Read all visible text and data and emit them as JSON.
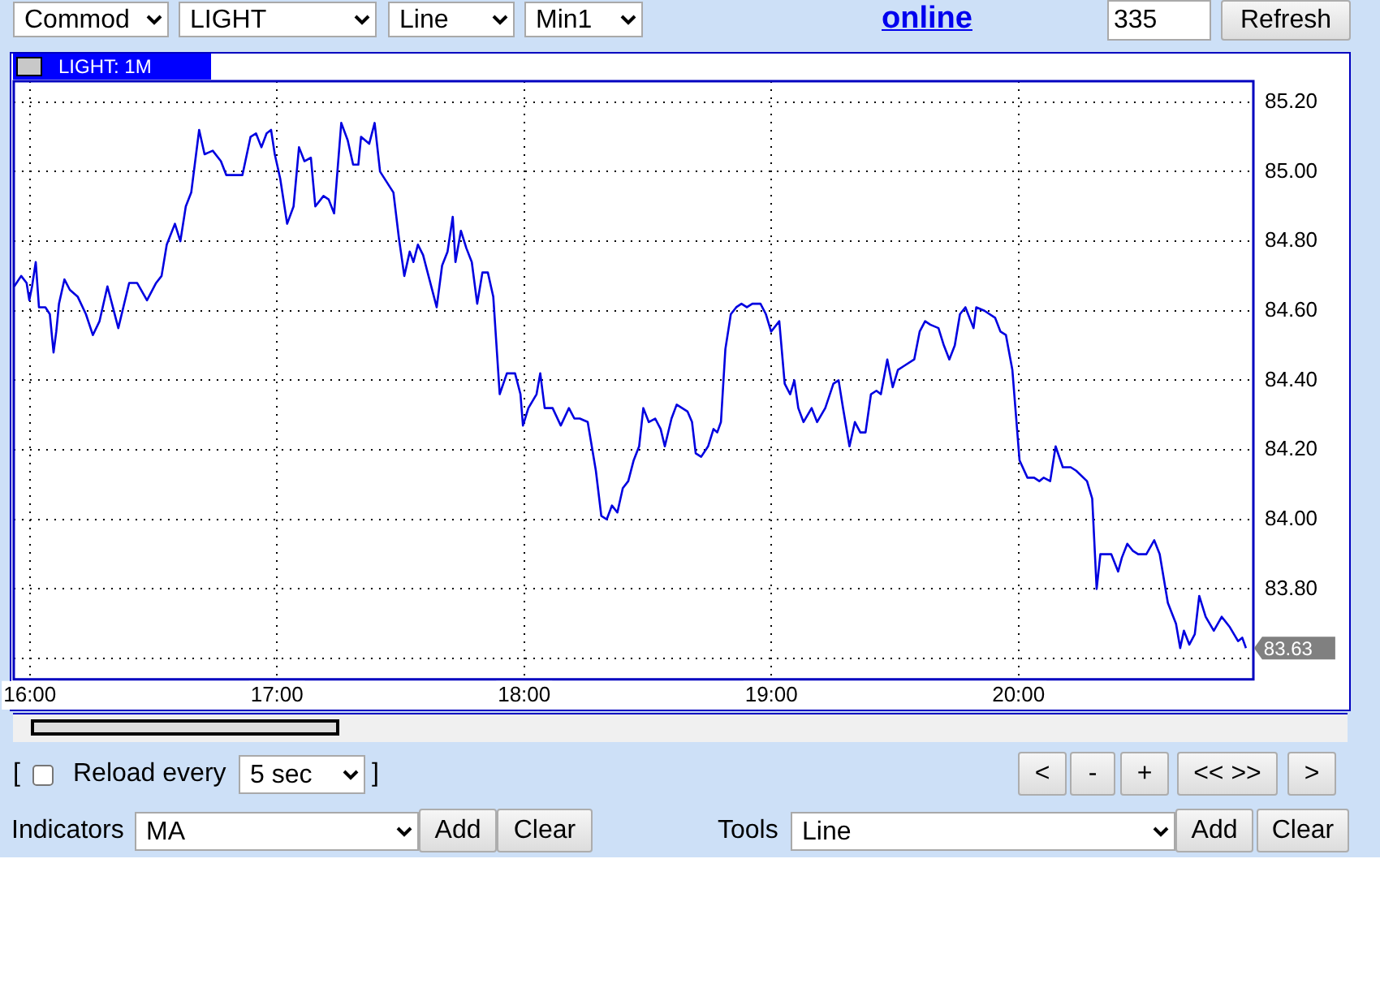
{
  "chart_data": {
    "type": "line",
    "title": "LIGHT: 1M",
    "x": [
      15.937,
      15.965,
      15.987,
      15.998,
      16.009,
      16.024,
      16.037,
      16.063,
      16.081,
      16.096,
      16.107,
      16.118,
      16.14,
      16.162,
      16.194,
      16.227,
      16.255,
      16.282,
      16.314,
      16.336,
      16.358,
      16.402,
      16.434,
      16.474,
      16.511,
      16.533,
      16.554,
      16.587,
      16.609,
      16.631,
      16.653,
      16.685,
      16.707,
      16.74,
      16.773,
      16.795,
      16.86,
      16.893,
      16.915,
      16.937,
      16.958,
      16.976,
      16.991,
      17.013,
      17.041,
      17.067,
      17.089,
      17.111,
      17.137,
      17.155,
      17.188,
      17.209,
      17.231,
      17.26,
      17.286,
      17.308,
      17.329,
      17.34,
      17.373,
      17.395,
      17.417,
      17.471,
      17.493,
      17.515,
      17.537,
      17.552,
      17.57,
      17.591,
      17.613,
      17.646,
      17.668,
      17.69,
      17.711,
      17.722,
      17.744,
      17.766,
      17.788,
      17.81,
      17.831,
      17.853,
      17.875,
      17.901,
      17.93,
      17.963,
      17.985,
      17.995,
      18.017,
      18.05,
      18.065,
      18.083,
      18.115,
      18.148,
      18.181,
      18.203,
      18.225,
      18.257,
      18.29,
      18.312,
      18.334,
      18.355,
      18.377,
      18.399,
      18.421,
      18.443,
      18.465,
      18.482,
      18.504,
      18.53,
      18.552,
      18.569,
      18.596,
      18.617,
      18.639,
      18.661,
      18.679,
      18.694,
      18.716,
      18.744,
      18.766,
      18.781,
      18.796,
      18.814,
      18.836,
      18.858,
      18.879,
      18.901,
      18.923,
      18.956,
      18.978,
      18.999,
      19.032,
      19.054,
      19.076,
      19.093,
      19.109,
      19.13,
      19.163,
      19.185,
      19.218,
      19.251,
      19.272,
      19.29,
      19.316,
      19.338,
      19.36,
      19.381,
      19.403,
      19.425,
      19.443,
      19.469,
      19.491,
      19.512,
      19.534,
      19.578,
      19.6,
      19.622,
      19.643,
      19.676,
      19.698,
      19.72,
      19.742,
      19.763,
      19.785,
      19.818,
      19.829,
      19.862,
      19.905,
      19.927,
      19.949,
      19.975,
      20.004,
      20.036,
      20.063,
      20.084,
      20.102,
      20.128,
      20.15,
      20.179,
      20.211,
      20.233,
      20.277,
      20.298,
      20.316,
      20.331,
      20.375,
      20.403,
      20.418,
      20.44,
      20.462,
      20.484,
      20.517,
      20.549,
      20.571,
      20.604,
      20.637,
      20.654,
      20.669,
      20.691,
      20.713,
      20.731,
      20.757,
      20.79,
      20.822,
      20.855,
      20.888,
      20.905,
      20.92
    ],
    "series": [
      {
        "color": "#0000e0",
        "values": [
          84.67,
          84.7,
          84.68,
          84.63,
          84.67,
          84.74,
          84.61,
          84.61,
          84.59,
          84.48,
          84.54,
          84.62,
          84.69,
          84.66,
          84.64,
          84.59,
          84.53,
          84.57,
          84.67,
          84.61,
          84.55,
          84.68,
          84.68,
          84.63,
          84.68,
          84.7,
          84.79,
          84.85,
          84.8,
          84.9,
          84.94,
          85.12,
          85.05,
          85.06,
          85.03,
          84.99,
          84.99,
          85.1,
          85.11,
          85.07,
          85.11,
          85.12,
          85.05,
          84.98,
          84.85,
          84.9,
          85.07,
          85.03,
          85.04,
          84.9,
          84.93,
          84.92,
          84.88,
          85.14,
          85.09,
          85.02,
          85.02,
          85.1,
          85.08,
          85.14,
          85.0,
          84.94,
          84.81,
          84.7,
          84.77,
          84.74,
          84.79,
          84.76,
          84.7,
          84.61,
          84.73,
          84.77,
          84.87,
          84.74,
          84.83,
          84.78,
          84.74,
          84.62,
          84.71,
          84.71,
          84.64,
          84.36,
          84.42,
          84.42,
          84.36,
          84.27,
          84.32,
          84.36,
          84.42,
          84.32,
          84.32,
          84.27,
          84.32,
          84.29,
          84.29,
          84.28,
          84.14,
          84.01,
          84.0,
          84.04,
          84.02,
          84.09,
          84.11,
          84.17,
          84.21,
          84.32,
          84.28,
          84.29,
          84.26,
          84.21,
          84.29,
          84.33,
          84.32,
          84.31,
          84.28,
          84.19,
          84.18,
          84.21,
          84.26,
          84.25,
          84.28,
          84.49,
          84.59,
          84.61,
          84.62,
          84.61,
          84.62,
          84.62,
          84.59,
          84.54,
          84.57,
          84.39,
          84.36,
          84.4,
          84.32,
          84.28,
          84.32,
          84.28,
          84.32,
          84.39,
          84.4,
          84.32,
          84.21,
          84.28,
          84.25,
          84.25,
          84.36,
          84.37,
          84.36,
          84.46,
          84.38,
          84.43,
          84.44,
          84.46,
          84.54,
          84.57,
          84.56,
          84.55,
          84.5,
          84.46,
          84.5,
          84.59,
          84.61,
          84.55,
          84.61,
          84.6,
          84.58,
          84.54,
          84.53,
          84.43,
          84.17,
          84.12,
          84.12,
          84.11,
          84.12,
          84.11,
          84.21,
          84.15,
          84.15,
          84.14,
          84.11,
          84.06,
          83.8,
          83.9,
          83.9,
          83.85,
          83.89,
          83.93,
          83.91,
          83.9,
          83.9,
          83.94,
          83.9,
          83.76,
          83.7,
          83.63,
          83.68,
          83.64,
          83.67,
          83.78,
          83.72,
          83.68,
          83.72,
          83.69,
          83.65,
          83.66,
          83.63
        ]
      }
    ],
    "xlim": [
      15.935,
      20.95
    ],
    "ylim": [
      83.54,
      85.26
    ],
    "xticks": [
      {
        "value": 16,
        "label": "16:00"
      },
      {
        "value": 17,
        "label": "17:00"
      },
      {
        "value": 18,
        "label": "18:00"
      },
      {
        "value": 19,
        "label": "19:00"
      },
      {
        "value": 20,
        "label": "20:00"
      }
    ],
    "yticks": [
      {
        "value": 83.6,
        "label": null
      },
      {
        "value": 83.8,
        "label": "83.80"
      },
      {
        "value": 84,
        "label": "84.00"
      },
      {
        "value": 84.2,
        "label": "84.20"
      },
      {
        "value": 84.4,
        "label": "84.40"
      },
      {
        "value": 84.6,
        "label": "84.60"
      },
      {
        "value": 84.8,
        "label": "84.80"
      },
      {
        "value": 85,
        "label": "85.00"
      },
      {
        "value": 85.2,
        "label": "85.20"
      }
    ],
    "grid": true,
    "annotations": [
      "Commod",
      "LIGHT",
      "Line",
      "Min1",
      "online",
      "335",
      "Refresh",
      "[",
      "Reload every",
      "5 sec",
      "]",
      "<",
      "-",
      "+",
      "<< >>",
      ">",
      "Indicators",
      "MA",
      "Add",
      "Clear",
      "Tools",
      "Line",
      "Add",
      "Clear",
      {
        "text": "83.63",
        "x": 20.92,
        "y": 83.63
      }
    ]
  }
}
